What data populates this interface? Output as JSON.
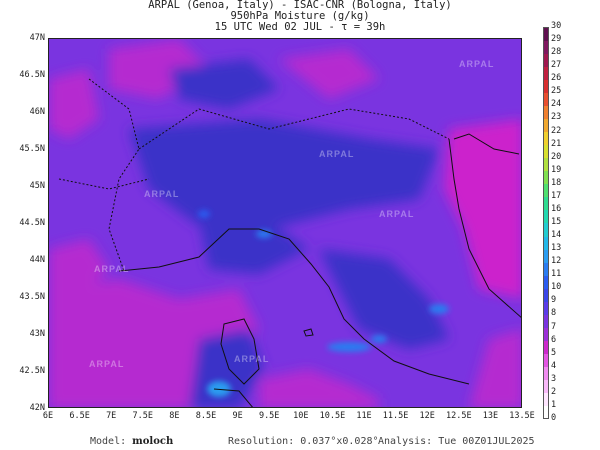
{
  "header": {
    "line1": "ARPAL (Genoa, Italy)  -  ISAC-CNR (Bologna, Italy)",
    "line2": "950hPa Moisture (g/kg)",
    "line3": "15 UTC Wed 02 JUL  -  τ = 39h"
  },
  "map": {
    "lat_labels": [
      "47N",
      "46.5N",
      "46N",
      "45.5N",
      "45N",
      "44.5N",
      "44N",
      "43.5N",
      "43N",
      "42.5N",
      "42N"
    ],
    "lon_labels": [
      "6E",
      "6.5E",
      "7E",
      "7.5E",
      "8E",
      "8.5E",
      "9E",
      "9.5E",
      "10E",
      "10.5E",
      "11E",
      "11.5E",
      "12E",
      "12.5E",
      "13E",
      "13.5E"
    ],
    "lat_range": [
      42,
      47
    ],
    "lon_range": [
      6,
      13.5
    ],
    "watermark": "ARPAL",
    "base_color": "#7a34e0",
    "land_high_color": "#3a30c8",
    "sea_color": "#b52ad0",
    "adriatic_color": "#cc22cc",
    "coastline_color": "#101010"
  },
  "colorbar": {
    "ticks": [
      "0",
      "1",
      "2",
      "3",
      "4",
      "5",
      "6",
      "7",
      "8",
      "9",
      "10",
      "11",
      "12",
      "13",
      "14",
      "15",
      "16",
      "17",
      "18",
      "19",
      "20",
      "21",
      "22",
      "23",
      "24",
      "25",
      "26",
      "27",
      "28",
      "29",
      "30"
    ],
    "colors": [
      "#ffffff",
      "#ffe6ff",
      "#f9b9f9",
      "#f08cf0",
      "#e356e3",
      "#cc2acc",
      "#9c30d8",
      "#7a34e0",
      "#5a3ce8",
      "#3a46e8",
      "#2a5cf0",
      "#2a7cf0",
      "#2a9cf0",
      "#22b8e8",
      "#22ccd0",
      "#22d8b0",
      "#30dc90",
      "#50e070",
      "#80e050",
      "#b0e040",
      "#d8e030",
      "#f0d030",
      "#f0a830",
      "#f08030",
      "#e85030",
      "#d83030",
      "#c02040",
      "#a01850",
      "#801860",
      "#601050"
    ]
  },
  "footer": {
    "model_label": "Model:",
    "model_value": "moloch",
    "resolution": "Resolution: 0.037°x0.028°",
    "analysis": "Analysis: Tue 00Z01JUL2025"
  }
}
